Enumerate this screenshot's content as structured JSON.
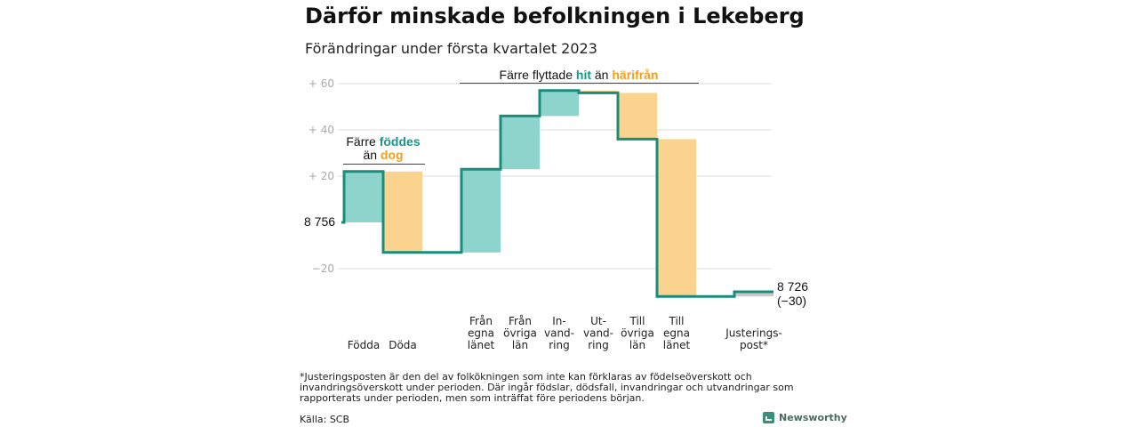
{
  "title": "Därför minskade befolkningen i Lekeberg",
  "subtitle": "Förändringar under första kvartalet 2023",
  "footnote": "*Justeringsposten är den del av folkökningen som inte kan förklaras av födelseöverskott och invandringsöverskott under perioden. Där ingår födslar, dödsfall, invandringar och utvandringar som rapporterats under perioden, men som inträffat före periodens början.",
  "source": "Källa: SCB",
  "brand": "Newsworthy",
  "colors": {
    "positive": "#8dd5cc",
    "negative": "#fad48e",
    "line": "#1a8c7c",
    "teal_text": "#16978a",
    "orange_text": "#f0a020",
    "adjustment": "#c9c9c9",
    "grid": "#dddddd"
  },
  "chart_data": {
    "type": "waterfall",
    "start_value": 8756,
    "start_label": "8 756",
    "end_label": "8 726",
    "end_change_label": "(−30)",
    "y_ticks": [
      {
        "value": 60,
        "label": "+ 60"
      },
      {
        "value": 40,
        "label": "+ 40"
      },
      {
        "value": 20,
        "label": "+ 20"
      },
      {
        "value": -20,
        "label": "−20"
      }
    ],
    "ylim": [
      -30,
      65
    ],
    "steps": [
      {
        "label_lines": [
          "Födda"
        ],
        "change": 22,
        "kind": "positive"
      },
      {
        "label_lines": [
          "Döda"
        ],
        "change": -35,
        "kind": "negative"
      },
      {
        "label_lines": [
          "Från",
          "egna",
          "länet"
        ],
        "change": 36,
        "kind": "positive"
      },
      {
        "label_lines": [
          "Från",
          "övriga",
          "län"
        ],
        "change": 23,
        "kind": "positive"
      },
      {
        "label_lines": [
          "In-",
          "vand-",
          "ring"
        ],
        "change": 11,
        "kind": "positive"
      },
      {
        "label_lines": [
          "Ut-",
          "vand-",
          "ring"
        ],
        "change": -1,
        "kind": "negative"
      },
      {
        "label_lines": [
          "Till",
          "övriga",
          "län"
        ],
        "change": -20,
        "kind": "negative"
      },
      {
        "label_lines": [
          "Till",
          "egna",
          "länet"
        ],
        "change": -68,
        "kind": "negative"
      },
      {
        "label_lines": [
          "Justerings-",
          "post*"
        ],
        "change": 2,
        "kind": "adjustment"
      }
    ],
    "annotations": {
      "births": {
        "line1_prefix": "Färre ",
        "line1_hl": "föddes",
        "line2_prefix": "än ",
        "line2_hl": "dog"
      },
      "migration": {
        "prefix": "Färre flyttade ",
        "hl1": "hit",
        "mid": " än ",
        "hl2": "härifrån"
      }
    }
  }
}
